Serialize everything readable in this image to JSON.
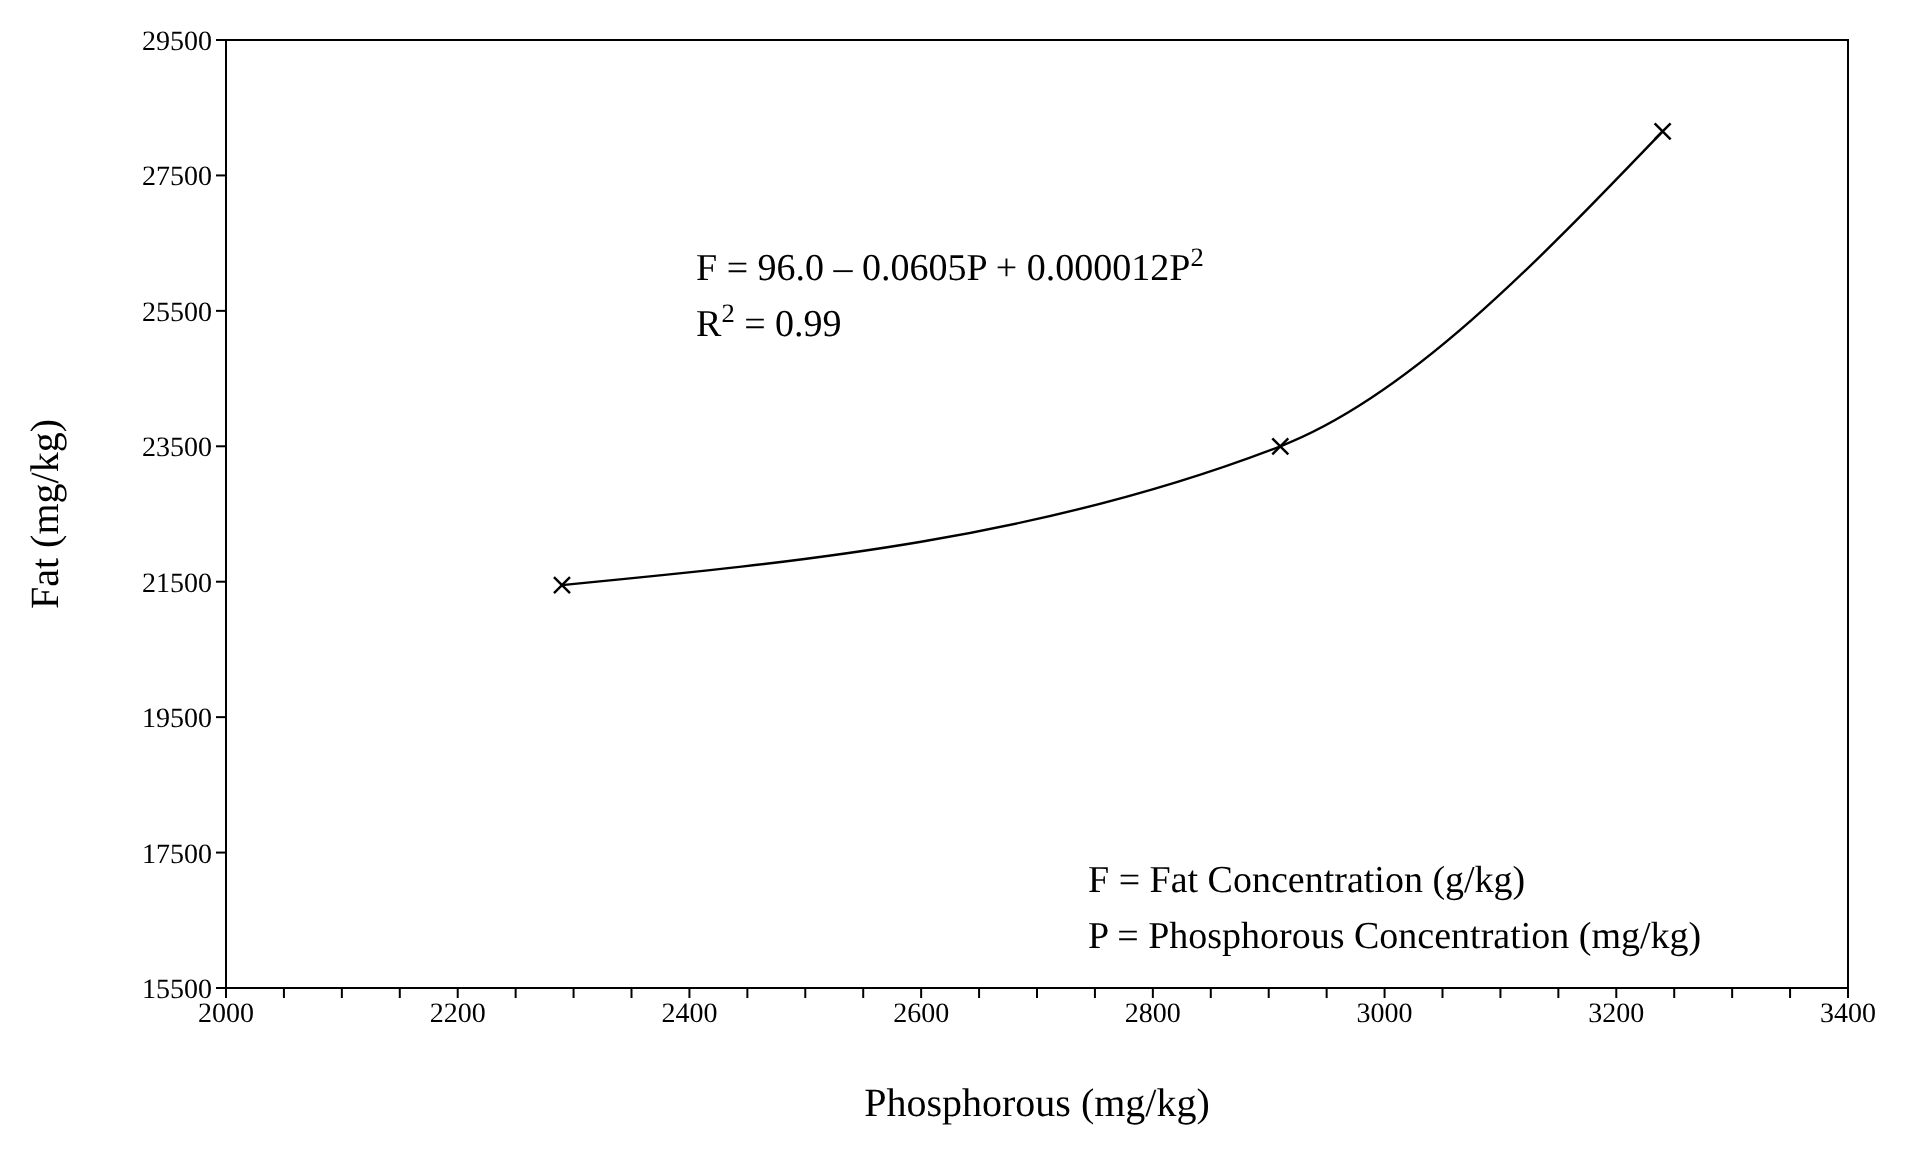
{
  "chart_data": {
    "type": "line",
    "xlabel": "Phosphorous (mg/kg)",
    "ylabel": "Fat (mg/kg)",
    "x": [
      2290,
      2910,
      3240
    ],
    "series": [
      {
        "color": "#000000",
        "values": [
          21450,
          23500,
          28150
        ]
      }
    ],
    "marker": "cross",
    "line_style": "solid",
    "grid": false,
    "legend": false,
    "xlim": [
      2000,
      3400
    ],
    "xticks": [
      2000,
      {
        "value": 2050,
        "label": null
      },
      {
        "value": 2100,
        "label": null
      },
      {
        "value": 2150,
        "label": null
      },
      2200,
      {
        "value": 2250,
        "label": null
      },
      {
        "value": 2300,
        "label": null
      },
      {
        "value": 2350,
        "label": null
      },
      2400,
      {
        "value": 2450,
        "label": null
      },
      {
        "value": 2500,
        "label": null
      },
      {
        "value": 2550,
        "label": null
      },
      2600,
      {
        "value": 2650,
        "label": null
      },
      {
        "value": 2700,
        "label": null
      },
      {
        "value": 2750,
        "label": null
      },
      2800,
      {
        "value": 2850,
        "label": null
      },
      {
        "value": 2900,
        "label": null
      },
      {
        "value": 2950,
        "label": null
      },
      3000,
      {
        "value": 3050,
        "label": null
      },
      {
        "value": 3100,
        "label": null
      },
      {
        "value": 3150,
        "label": null
      },
      3200,
      {
        "value": 3250,
        "label": null
      },
      {
        "value": 3300,
        "label": null
      },
      {
        "value": 3350,
        "label": null
      },
      3400
    ],
    "ylim": [
      15500,
      29500
    ],
    "yticks": [
      15500,
      17500,
      19500,
      21500,
      23500,
      25500,
      27500,
      29500
    ],
    "annotations": [
      "F = 96.0 – 0.0605P + 0.000012P$^{2}$",
      "R$^{2}$ = 0.99",
      "F = Fat Concentration (g/kg)",
      "P = Phosphorous Concentration (mg/kg)"
    ]
  }
}
